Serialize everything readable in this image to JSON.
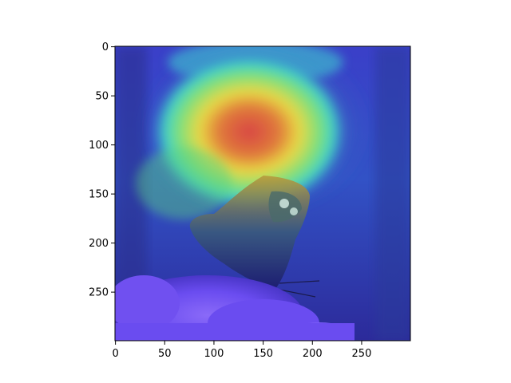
{
  "image": {
    "subject": "butterfly on purple flowers",
    "overlay": "jet colormap heatmap",
    "axes": {
      "x_ticks": [
        {
          "value": 0,
          "label": "0"
        },
        {
          "value": 50,
          "label": "50"
        },
        {
          "value": 100,
          "label": "100"
        },
        {
          "value": 150,
          "label": "150"
        },
        {
          "value": 200,
          "label": "200"
        },
        {
          "value": 250,
          "label": "250"
        }
      ],
      "y_ticks": [
        {
          "value": 0,
          "label": "0"
        },
        {
          "value": 50,
          "label": "50"
        },
        {
          "value": 100,
          "label": "100"
        },
        {
          "value": 150,
          "label": "150"
        },
        {
          "value": 200,
          "label": "200"
        },
        {
          "value": 250,
          "label": "250"
        }
      ],
      "x_range": [
        0,
        299
      ],
      "y_range": [
        0,
        299
      ],
      "y_inverted": true
    }
  },
  "colors": {
    "jet_blue": "#2a2acb",
    "jet_cyan": "#3fe0e0",
    "jet_green": "#6ee86e",
    "jet_yellow": "#f0e040",
    "jet_red": "#e04040",
    "flowers": "#6a4df0"
  }
}
